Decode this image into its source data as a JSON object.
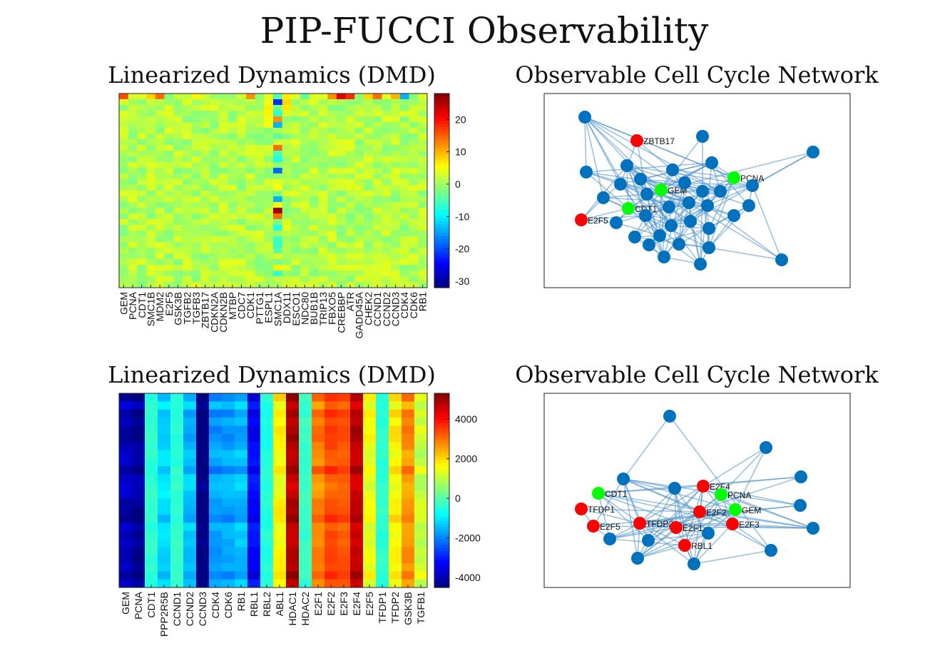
{
  "title": "PIP-FUCCI Observability",
  "chart_data": [
    {
      "type": "heatmap",
      "title": "Linearized Dynamics (DMD)",
      "xlabels": [
        "GEM",
        "PCNA",
        "CDT1",
        "SMC1B",
        "MDM2",
        "E2F5",
        "GSK3B",
        "TGFB2",
        "TGFB3",
        "ZBTB17",
        "CDKN2A",
        "CDKN2B",
        "MTBP",
        "CDC7",
        "CDK1",
        "PTTG1",
        "ESPL1",
        "SMC1A",
        "DDX11",
        "ESCO1",
        "NDC80",
        "BUB1B",
        "TRIP13",
        "FBXO5",
        "CREBBP",
        "ATR",
        "GADD45A",
        "CHEK2",
        "CCND1",
        "CCND2",
        "CCND3",
        "CDK4",
        "CDK6",
        "RB1"
      ],
      "rows": 34,
      "colorbar": {
        "ticks": [
          20,
          10,
          0,
          -10,
          -20,
          -30
        ],
        "limits": [
          -32,
          28
        ]
      },
      "notable_columns": {
        "SMC1A": "strong positive/negative spikes",
        "ESPL1": "mild positive",
        "CREBBP": "strong positive top row"
      }
    },
    {
      "type": "network",
      "title": "Observable Cell Cycle Network",
      "labeled_nodes": [
        {
          "label": "ZBTB17",
          "color": "red"
        },
        {
          "label": "PCNA",
          "color": "green"
        },
        {
          "label": "GEM",
          "color": "green"
        },
        {
          "label": "CDT1",
          "color": "green"
        },
        {
          "label": "E2F5",
          "color": "red"
        }
      ],
      "unlabeled_node_count": 33,
      "colors": {
        "node": "#0072BD",
        "edge": "#4A90C8",
        "red": "#FF0000",
        "green": "#00FF00"
      }
    },
    {
      "type": "heatmap",
      "title": "Linearized Dynamics (DMD)",
      "xlabels": [
        "GEM",
        "PCNA",
        "CDT1",
        "PPP2R5B",
        "CCND1",
        "CCND2",
        "CCND3",
        "CDK4",
        "CDK6",
        "RB1",
        "RBL1",
        "RBL2",
        "ABL1",
        "HDAC1",
        "HDAC2",
        "E2F1",
        "E2F2",
        "E2F3",
        "E2F4",
        "E2F5",
        "TFDP1",
        "TFDP2",
        "GSK3B",
        "TGFB1"
      ],
      "rows": 24,
      "colorbar": {
        "ticks": [
          4000,
          2000,
          0,
          -2000,
          -4000
        ],
        "limits": [
          -4500,
          5300
        ]
      },
      "column_means": [
        -4000,
        -4300,
        -400,
        -1200,
        -400,
        -1500,
        -4600,
        -1800,
        -1700,
        -1500,
        -3300,
        -500,
        1700,
        4800,
        -300,
        2900,
        3400,
        3300,
        4700,
        1500,
        -400,
        1700,
        2700,
        1100
      ]
    },
    {
      "type": "network",
      "title": "Observable Cell Cycle Network",
      "labeled_nodes": [
        {
          "label": "E2F4",
          "color": "red"
        },
        {
          "label": "CDT1",
          "color": "green"
        },
        {
          "label": "PCNA",
          "color": "green"
        },
        {
          "label": "TFDP1",
          "color": "red"
        },
        {
          "label": "E2F2",
          "color": "red"
        },
        {
          "label": "GEM",
          "color": "green"
        },
        {
          "label": "TFDP2",
          "color": "red"
        },
        {
          "label": "E2F1",
          "color": "red"
        },
        {
          "label": "E2F3",
          "color": "red"
        },
        {
          "label": "E2F5",
          "color": "red"
        },
        {
          "label": "RBL1",
          "color": "red"
        }
      ],
      "unlabeled_node_count": 13,
      "colors": {
        "node": "#0072BD",
        "edge": "#4A90C8",
        "red": "#FF0000",
        "green": "#00FF00"
      }
    }
  ]
}
